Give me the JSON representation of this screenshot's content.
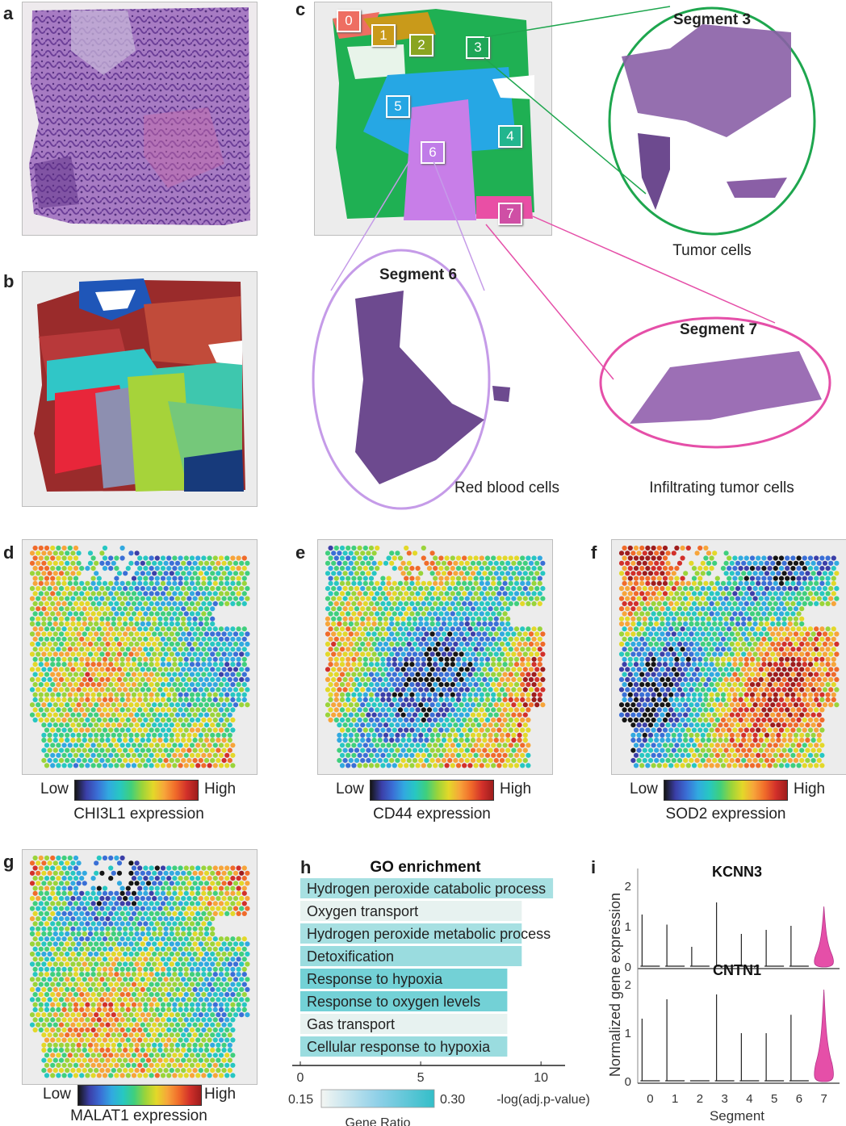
{
  "panels": {
    "a": "a",
    "b": "b",
    "c": "c",
    "d": "d",
    "e": "e",
    "f": "f",
    "g": "g",
    "h": "h",
    "i": "i"
  },
  "panel_c": {
    "segment_markers": [
      {
        "label": "0",
        "color": "#ee6e62"
      },
      {
        "label": "1",
        "color": "#c99a1a"
      },
      {
        "label": "2",
        "color": "#8aa420"
      },
      {
        "label": "3",
        "color": "#1fa657"
      },
      {
        "label": "4",
        "color": "#22b58e"
      },
      {
        "label": "5",
        "color": "#25a6e3"
      },
      {
        "label": "6",
        "color": "#c07ce8"
      },
      {
        "label": "7",
        "color": "#cf4fa5"
      }
    ],
    "callouts": [
      {
        "title": "Segment 3",
        "caption": "Tumor cells",
        "color": "#1ea64e"
      },
      {
        "title": "Segment 6",
        "caption": "Red blood cells",
        "color": "#c59be8"
      },
      {
        "title": "Segment 7",
        "caption": "Infiltrating tumor cells",
        "color": "#e54fa8"
      }
    ]
  },
  "expression_maps": [
    {
      "gene_label": "CHI3L1 expression",
      "low": "Low",
      "high": "High"
    },
    {
      "gene_label": "CD44 expression",
      "low": "Low",
      "high": "High"
    },
    {
      "gene_label": "SOD2 expression",
      "low": "Low",
      "high": "High"
    },
    {
      "gene_label": "MALAT1 expression",
      "low": "Low",
      "high": "High"
    }
  ],
  "colormap": [
    "#151515",
    "#3b3fa8",
    "#3a6fd6",
    "#31a9e0",
    "#27c7c2",
    "#3fcf7d",
    "#9ad43a",
    "#e3d829",
    "#f7a53a",
    "#f06b2a",
    "#d2302a",
    "#9e1d1d"
  ],
  "chart_data": [
    {
      "type": "bar",
      "orientation": "horizontal",
      "title": "GO enrichment",
      "xlabel": "-log(adj.p-value)",
      "categories": [
        "Hydrogen peroxide catabolic process",
        "Oxygen transport",
        "Hydrogen peroxide metabolic process",
        "Detoxification",
        "Response to hypoxia",
        "Response to oxygen levels",
        "Gas transport",
        "Cellular response to hypoxia"
      ],
      "values": [
        10.5,
        9.2,
        9.2,
        9.2,
        8.6,
        8.6,
        8.6,
        8.6
      ],
      "gene_ratio": [
        0.21,
        0.16,
        0.21,
        0.22,
        0.25,
        0.25,
        0.16,
        0.22
      ],
      "xticks": [
        0,
        5,
        10
      ],
      "xlim": [
        0,
        11
      ],
      "colorbar": {
        "label": "Gene Ratio",
        "min": 0.15,
        "max": 0.3,
        "min_label": "0.15",
        "max_label": "0.30"
      }
    },
    {
      "type": "violin",
      "ylabel": "Normalized gene expression",
      "xlabel": "Segment",
      "categories": [
        "0",
        "1",
        "2",
        "3",
        "4",
        "5",
        "6",
        "7"
      ],
      "highlight_color": "#e54fa8",
      "panels": [
        {
          "title": "KCNN3",
          "yticks": [
            0,
            1,
            2
          ],
          "ylim": [
            0,
            2
          ],
          "max_values": [
            1.3,
            1.05,
            0.5,
            1.6,
            0.82,
            0.92,
            1.02,
            1.5
          ]
        },
        {
          "title": "CNTN1",
          "yticks": [
            0,
            1,
            2
          ],
          "ylim": [
            0,
            2
          ],
          "max_values": [
            1.3,
            1.7,
            0.0,
            1.8,
            1.0,
            1.0,
            1.38,
            1.9
          ]
        }
      ]
    }
  ]
}
